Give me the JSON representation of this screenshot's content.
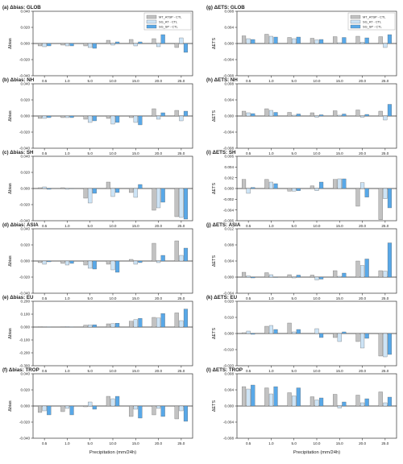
{
  "colors": {
    "mt_atsp": "#c2c2c2",
    "sg_at": "#cde4f6",
    "sg_sp": "#58a8e8",
    "edge": "#555555",
    "axis": "#333333"
  },
  "legend": [
    "MT_ATSP - CTL",
    "SG_AT - CTL",
    "SG_SP - CTL"
  ],
  "chart_data": [
    {
      "type": "bar",
      "title": "(a) Δbias: GLOB",
      "ylabel": "Δbias",
      "ylim": [
        -0.04,
        0.04
      ],
      "yticks": [
        "-0.040",
        "-0.020",
        "0.000",
        "0.020",
        "0.040"
      ],
      "categories": [
        "0.5",
        "1.0",
        "5.0",
        "10.0",
        "15.0",
        "20.0",
        "25.0"
      ],
      "legend": true,
      "xlabel": "",
      "series": [
        {
          "name": "MT_ATSP - CTL",
          "values": [
            -0.003,
            -0.002,
            -0.003,
            0.004,
            0.005,
            0.006,
            -0.005
          ]
        },
        {
          "name": "SG_AT - CTL",
          "values": [
            -0.004,
            -0.003,
            -0.005,
            -0.002,
            -0.003,
            -0.004,
            0.007
          ]
        },
        {
          "name": "SG_SP - CTL",
          "values": [
            -0.003,
            -0.003,
            -0.006,
            0.002,
            0.002,
            0.011,
            -0.011
          ]
        }
      ]
    },
    {
      "type": "bar",
      "title": "(g) ΔETS: GLOB",
      "ylabel": "ΔETS",
      "ylim": [
        -0.008,
        0.008
      ],
      "yticks": [
        "-0.008",
        "-0.004",
        "0.000",
        "0.004",
        "0.008"
      ],
      "categories": [
        "0.5",
        "1.0",
        "5.0",
        "10.0",
        "15.0",
        "20.0",
        "25.0"
      ],
      "legend": true,
      "xlabel": "",
      "series": [
        {
          "name": "MT_ATSP - CTL",
          "values": [
            0.0019,
            0.0023,
            0.0015,
            0.0013,
            0.0017,
            0.0018,
            0.0017
          ]
        },
        {
          "name": "SG_AT - CTL",
          "values": [
            0.0012,
            0.0018,
            0.0012,
            0.0009,
            0.0002,
            0.0003,
            -0.001
          ]
        },
        {
          "name": "SG_SP - CTL",
          "values": [
            0.001,
            0.0016,
            0.0016,
            0.001,
            0.0015,
            0.0014,
            0.0022
          ]
        }
      ]
    },
    {
      "type": "bar",
      "title": "(b) Δbias: NH",
      "ylabel": "Δbias",
      "ylim": [
        -0.04,
        0.04
      ],
      "yticks": [
        "-0.040",
        "-0.020",
        "0.000",
        "0.020",
        "0.040"
      ],
      "categories": [
        "0.5",
        "1.0",
        "5.0",
        "10.0",
        "15.0",
        "20.0",
        "25.0"
      ],
      "legend": false,
      "xlabel": "",
      "series": [
        {
          "name": "MT_ATSP - CTL",
          "values": [
            -0.003,
            -0.002,
            -0.004,
            -0.003,
            -0.002,
            0.009,
            0.007
          ]
        },
        {
          "name": "SG_AT - CTL",
          "values": [
            -0.003,
            -0.002,
            -0.008,
            -0.01,
            -0.008,
            -0.004,
            -0.006
          ]
        },
        {
          "name": "SG_SP - CTL",
          "values": [
            -0.002,
            -0.002,
            -0.006,
            -0.008,
            -0.011,
            0.004,
            0.006
          ]
        }
      ]
    },
    {
      "type": "bar",
      "title": "(h) ΔETS: NH",
      "ylabel": "ΔETS",
      "ylim": [
        -0.008,
        0.008
      ],
      "yticks": [
        "-0.008",
        "-0.004",
        "0.000",
        "0.004",
        "0.008"
      ],
      "categories": [
        "0.5",
        "1.0",
        "5.0",
        "10.0",
        "15.0",
        "20.0",
        "25.0"
      ],
      "legend": false,
      "xlabel": "",
      "series": [
        {
          "name": "MT_ATSP - CTL",
          "values": [
            0.0012,
            0.0018,
            0.0009,
            0.0008,
            0.0013,
            0.0015,
            0.0012
          ]
        },
        {
          "name": "SG_AT - CTL",
          "values": [
            0.0008,
            0.0014,
            0.0002,
            -0.0003,
            0.0002,
            -0.0003,
            -0.001
          ]
        },
        {
          "name": "SG_SP - CTL",
          "values": [
            0.0006,
            0.0009,
            0.0005,
            0.0003,
            0.0005,
            0.0004,
            0.0029
          ]
        }
      ]
    },
    {
      "type": "bar",
      "title": "(c) Δbias: SH",
      "ylabel": "Δbias",
      "ylim": [
        -0.04,
        0.04
      ],
      "yticks": [
        "-0.040",
        "-0.020",
        "0.000",
        "0.020",
        "0.040"
      ],
      "categories": [
        "0.5",
        "1.0",
        "5.0",
        "10.0",
        "15.0",
        "20.0",
        "25.0"
      ],
      "legend": false,
      "xlabel": "",
      "series": [
        {
          "name": "MT_ATSP - CTL",
          "values": [
            0.001,
            0.001,
            -0.012,
            0.008,
            -0.005,
            -0.027,
            -0.035
          ]
        },
        {
          "name": "SG_AT - CTL",
          "values": [
            0.002,
            -0.001,
            -0.018,
            -0.01,
            -0.011,
            -0.024,
            -0.036
          ]
        },
        {
          "name": "SG_SP - CTL",
          "values": [
            -0.001,
            0.0,
            -0.006,
            -0.005,
            0.005,
            -0.017,
            -0.038
          ]
        }
      ]
    },
    {
      "type": "bar",
      "title": "(i) ΔETS: SH",
      "ylabel": "ΔETS",
      "ylim": [
        -0.006,
        0.006
      ],
      "yticks": [
        "-0.006",
        "-0.004",
        "-0.002",
        "0.000",
        "0.002",
        "0.004",
        "0.006"
      ],
      "categories": [
        "0.5",
        "1.0",
        "5.0",
        "10.0",
        "15.0",
        "20.0",
        "25.0"
      ],
      "legend": false,
      "xlabel": "",
      "series": [
        {
          "name": "MT_ATSP - CTL",
          "values": [
            0.0017,
            0.0017,
            -0.0005,
            0.0005,
            0.0017,
            -0.0033,
            -0.0058
          ]
        },
        {
          "name": "SG_AT - CTL",
          "values": [
            -0.0009,
            0.0012,
            -0.0005,
            -0.0004,
            0.0018,
            0.0011,
            -0.0019
          ]
        },
        {
          "name": "SG_SP - CTL",
          "values": [
            0.0002,
            0.0009,
            -0.0004,
            0.0012,
            0.0018,
            -0.0016,
            -0.0036
          ]
        }
      ]
    },
    {
      "type": "bar",
      "title": "(d) Δbias: ASIA",
      "ylabel": "Δbias",
      "ylim": [
        -0.04,
        0.04
      ],
      "yticks": [
        "-0.040",
        "-0.020",
        "0.000",
        "0.020",
        "0.040"
      ],
      "categories": [
        "0.5",
        "1.0",
        "5.0",
        "10.0",
        "15.0",
        "20.0",
        "25.0"
      ],
      "legend": false,
      "xlabel": "",
      "series": [
        {
          "name": "MT_ATSP - CTL",
          "values": [
            -0.002,
            -0.003,
            -0.005,
            -0.004,
            0.002,
            0.022,
            0.025
          ]
        },
        {
          "name": "SG_AT - CTL",
          "values": [
            -0.004,
            -0.005,
            -0.009,
            -0.011,
            -0.004,
            -0.002,
            0.007
          ]
        },
        {
          "name": "SG_SP - CTL",
          "values": [
            -0.001,
            -0.003,
            -0.01,
            -0.014,
            -0.002,
            0.007,
            0.016
          ]
        }
      ]
    },
    {
      "type": "bar",
      "title": "(j) ΔETS: ASIA",
      "ylabel": "ΔETS",
      "ylim": [
        -0.004,
        0.012
      ],
      "yticks": [
        "-0.004",
        "0.000",
        "0.004",
        "0.008",
        "0.012"
      ],
      "categories": [
        "0.5",
        "1.0",
        "5.0",
        "10.0",
        "15.0",
        "20.0",
        "25.0"
      ],
      "legend": false,
      "xlabel": "",
      "series": [
        {
          "name": "MT_ATSP - CTL",
          "values": [
            0.0012,
            0.0011,
            0.0006,
            0.0005,
            0.0016,
            0.004,
            0.0016
          ]
        },
        {
          "name": "SG_AT - CTL",
          "values": [
            0.0003,
            0.0006,
            -0.0002,
            -0.0007,
            0.0002,
            0.0029,
            0.0015
          ]
        },
        {
          "name": "SG_SP - CTL",
          "values": [
            -0.0002,
            -0.0001,
            0.0005,
            -0.0005,
            0.001,
            0.0045,
            0.0085
          ]
        }
      ]
    },
    {
      "type": "bar",
      "title": "(e) Δbias: EU",
      "ylabel": "Δbias",
      "ylim": [
        -0.3,
        0.2
      ],
      "yticks": [
        "-0.300",
        "-0.200",
        "-0.100",
        "0.000",
        "0.100",
        "0.200"
      ],
      "categories": [
        "0.5",
        "1.0",
        "5.0",
        "10.0",
        "15.0",
        "20.0",
        "25.0"
      ],
      "legend": false,
      "xlabel": "",
      "series": [
        {
          "name": "MT_ATSP - CTL",
          "values": [
            0.003,
            0.003,
            0.015,
            0.025,
            0.045,
            0.075,
            0.11
          ]
        },
        {
          "name": "SG_AT - CTL",
          "values": [
            0.003,
            0.004,
            0.017,
            0.026,
            0.058,
            0.07,
            0.05
          ]
        },
        {
          "name": "SG_SP - CTL",
          "values": [
            0.002,
            0.002,
            0.018,
            0.03,
            0.068,
            0.105,
            0.14
          ]
        }
      ]
    },
    {
      "type": "bar",
      "title": "(k) ΔETS: EU",
      "ylabel": "ΔETS",
      "ylim": [
        -0.02,
        0.02
      ],
      "yticks": [
        "-0.020",
        "-0.010",
        "0.000",
        "0.010",
        "0.020"
      ],
      "categories": [
        "0.5",
        "1.0",
        "5.0",
        "10.0",
        "15.0",
        "20.0",
        "25.0"
      ],
      "legend": false,
      "xlabel": "",
      "series": [
        {
          "name": "MT_ATSP - CTL",
          "values": [
            0.0005,
            0.0045,
            0.0065,
            0.0,
            -0.0025,
            -0.005,
            -0.014
          ]
        },
        {
          "name": "SG_AT - CTL",
          "values": [
            0.0015,
            0.005,
            0.001,
            0.003,
            -0.005,
            -0.009,
            -0.0145
          ]
        },
        {
          "name": "SG_SP - CTL",
          "values": [
            -0.0005,
            0.0025,
            0.0025,
            -0.0025,
            0.001,
            -0.003,
            -0.013
          ]
        }
      ]
    },
    {
      "type": "bar",
      "title": "(f) Δbias: TROP",
      "ylabel": "Δbias",
      "ylim": [
        -0.04,
        0.04
      ],
      "yticks": [
        "-0.040",
        "-0.020",
        "0.000",
        "0.020",
        "0.040"
      ],
      "categories": [
        "0.5",
        "1.0",
        "5.0",
        "10.0",
        "15.0",
        "20.0",
        "25.0"
      ],
      "legend": false,
      "xlabel": "Precipitation (mm/24h)",
      "series": [
        {
          "name": "MT_ATSP - CTL",
          "values": [
            -0.008,
            -0.007,
            -0.001,
            0.012,
            -0.013,
            -0.011,
            -0.016
          ]
        },
        {
          "name": "SG_AT - CTL",
          "values": [
            -0.006,
            -0.003,
            0.005,
            0.009,
            -0.004,
            -0.003,
            -0.006
          ]
        },
        {
          "name": "SG_SP - CTL",
          "values": [
            -0.011,
            -0.011,
            -0.004,
            0.012,
            -0.015,
            -0.013,
            -0.019
          ]
        }
      ]
    },
    {
      "type": "bar",
      "title": "(l) ΔETS: TROP",
      "ylabel": "ΔETS",
      "ylim": [
        -0.008,
        0.008
      ],
      "yticks": [
        "-0.008",
        "-0.004",
        "0.000",
        "0.004",
        "0.008"
      ],
      "categories": [
        "0.5",
        "1.0",
        "5.0",
        "10.0",
        "15.0",
        "20.0",
        "25.0"
      ],
      "legend": false,
      "xlabel": "Precipitation (mm/24h)",
      "series": [
        {
          "name": "MT_ATSP - CTL",
          "values": [
            0.0048,
            0.0045,
            0.0033,
            0.0023,
            0.0029,
            0.0027,
            0.0035
          ]
        },
        {
          "name": "SG_AT - CTL",
          "values": [
            0.0042,
            0.003,
            0.0025,
            0.0015,
            -0.0005,
            0.0008,
            0.0008
          ]
        },
        {
          "name": "SG_SP - CTL",
          "values": [
            0.0052,
            0.0048,
            0.0045,
            0.002,
            0.001,
            0.0018,
            0.0022
          ]
        }
      ]
    }
  ]
}
